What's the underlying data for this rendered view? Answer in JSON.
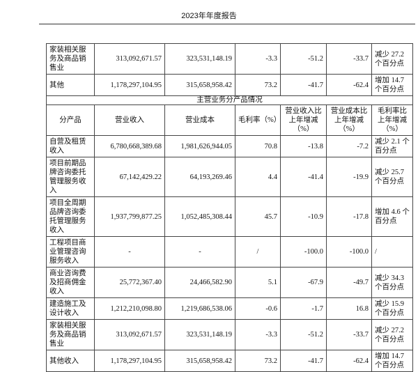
{
  "header": {
    "title": "2023年年度报告"
  },
  "table": {
    "top_rows": [
      [
        "家装相关服务及商品销售业",
        "313,092,671.57",
        "323,531,148.19",
        "-3.3",
        "-51.2",
        "-33.7",
        "减少 27.2 个百分点"
      ],
      [
        "其他",
        "1,178,297,104.95",
        "315,658,958.42",
        "73.2",
        "-41.7",
        "-62.4",
        "增加 14.7 个百分点"
      ]
    ],
    "section_title": "主营业务分产品情况",
    "columns": [
      "分产品",
      "营业收入",
      "营业成本",
      "毛利率（%）",
      "营业收入比上年增减（%）",
      "营业成本比上年增减（%）",
      "毛利率比上年增减（%）"
    ],
    "rows": [
      [
        "自营及租赁收入",
        "6,780,668,389.68",
        "1,981,626,944.05",
        "70.8",
        "-13.8",
        "-7.2",
        "减少 2.1 个百分点"
      ],
      [
        "项目前期品牌咨询委托管理服务收入",
        "67,142,429.22",
        "64,193,269.46",
        "4.4",
        "-41.4",
        "-19.9",
        "减少 25.7 个百分点"
      ],
      [
        "项目全周期品牌咨询委托管理服务收入",
        "1,937,799,877.25",
        "1,052,485,308.44",
        "45.7",
        "-10.9",
        "-17.8",
        "增加 4.6 个百分点"
      ],
      [
        "工程项目商业管理咨询服务收入",
        "-",
        "-",
        "/",
        "-100.0",
        "-100.0",
        "/"
      ],
      [
        "商业咨询费及招商佣金收入",
        "25,772,367.40",
        "24,466,582.90",
        "5.1",
        "-67.9",
        "-49.7",
        "减少 34.3 个百分点"
      ],
      [
        "建造施工及设计收入",
        "1,212,210,098.80",
        "1,219,686,538.06",
        "-0.6",
        "-1.7",
        "16.8",
        "减少 15.9 个百分点"
      ],
      [
        "家装相关服务及商品销售业",
        "313,092,671.57",
        "323,531,148.19",
        "-3.3",
        "-51.2",
        "-33.7",
        "减少 27.2 个百分点"
      ],
      [
        "其他收入",
        "1,178,297,104.95",
        "315,658,958.42",
        "73.2",
        "-41.7",
        "-62.4",
        "增加 14.7 个百分点"
      ]
    ]
  }
}
